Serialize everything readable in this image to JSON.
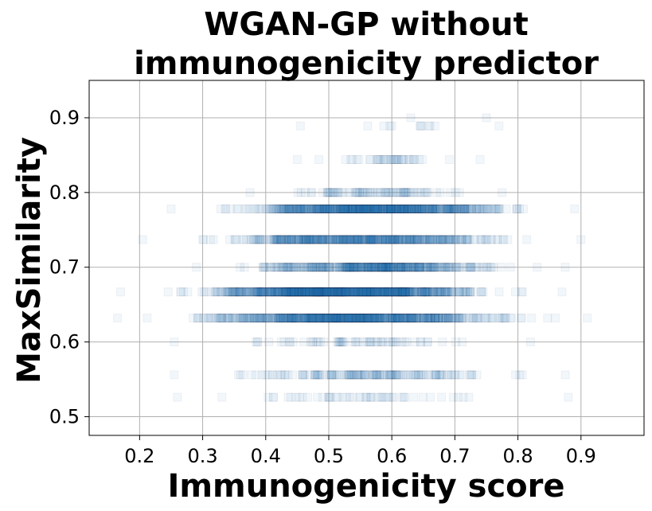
{
  "chart_data": {
    "type": "scatter",
    "title": [
      "WGAN-GP without",
      "immunogenicity predictor"
    ],
    "xlabel": "Immunogenicity score",
    "ylabel": "MaxSimilarity",
    "xlim": [
      0.12,
      1.0
    ],
    "ylim": [
      0.475,
      0.95
    ],
    "xticks": [
      0.2,
      0.3,
      0.4,
      0.5,
      0.6,
      0.7,
      0.8,
      0.9
    ],
    "xtick_labels": [
      "0.2",
      "0.3",
      "0.4",
      "0.5",
      "0.6",
      "0.7",
      "0.8",
      "0.9"
    ],
    "yticks": [
      0.5,
      0.6,
      0.7,
      0.8,
      0.9
    ],
    "ytick_labels": [
      "0.5",
      "0.6",
      "0.7",
      "0.8",
      "0.9"
    ],
    "grid": true,
    "marker": "square",
    "marker_color": "#1f77b4",
    "marker_alpha": 0.06,
    "rows": [
      {
        "y": 0.9,
        "x_range": [
          0.63,
          0.75
        ],
        "count": 2
      },
      {
        "y": 0.889,
        "x_range": [
          0.455,
          0.77
        ],
        "count": 12
      },
      {
        "y": 0.844,
        "x_range": [
          0.45,
          0.74
        ],
        "count": 40
      },
      {
        "y": 0.8,
        "x_range": [
          0.375,
          0.775
        ],
        "count": 80
      },
      {
        "y": 0.778,
        "x_range": [
          0.25,
          0.89
        ],
        "count": 700
      },
      {
        "y": 0.737,
        "x_range": [
          0.205,
          0.9
        ],
        "count": 500
      },
      {
        "y": 0.7,
        "x_range": [
          0.29,
          0.875
        ],
        "count": 400
      },
      {
        "y": 0.667,
        "x_range": [
          0.17,
          0.87
        ],
        "count": 900
      },
      {
        "y": 0.632,
        "x_range": [
          0.165,
          0.91
        ],
        "count": 700
      },
      {
        "y": 0.6,
        "x_range": [
          0.255,
          0.82
        ],
        "count": 60
      },
      {
        "y": 0.556,
        "x_range": [
          0.255,
          0.875
        ],
        "count": 150
      },
      {
        "y": 0.526,
        "x_range": [
          0.26,
          0.88
        ],
        "count": 50
      }
    ]
  }
}
